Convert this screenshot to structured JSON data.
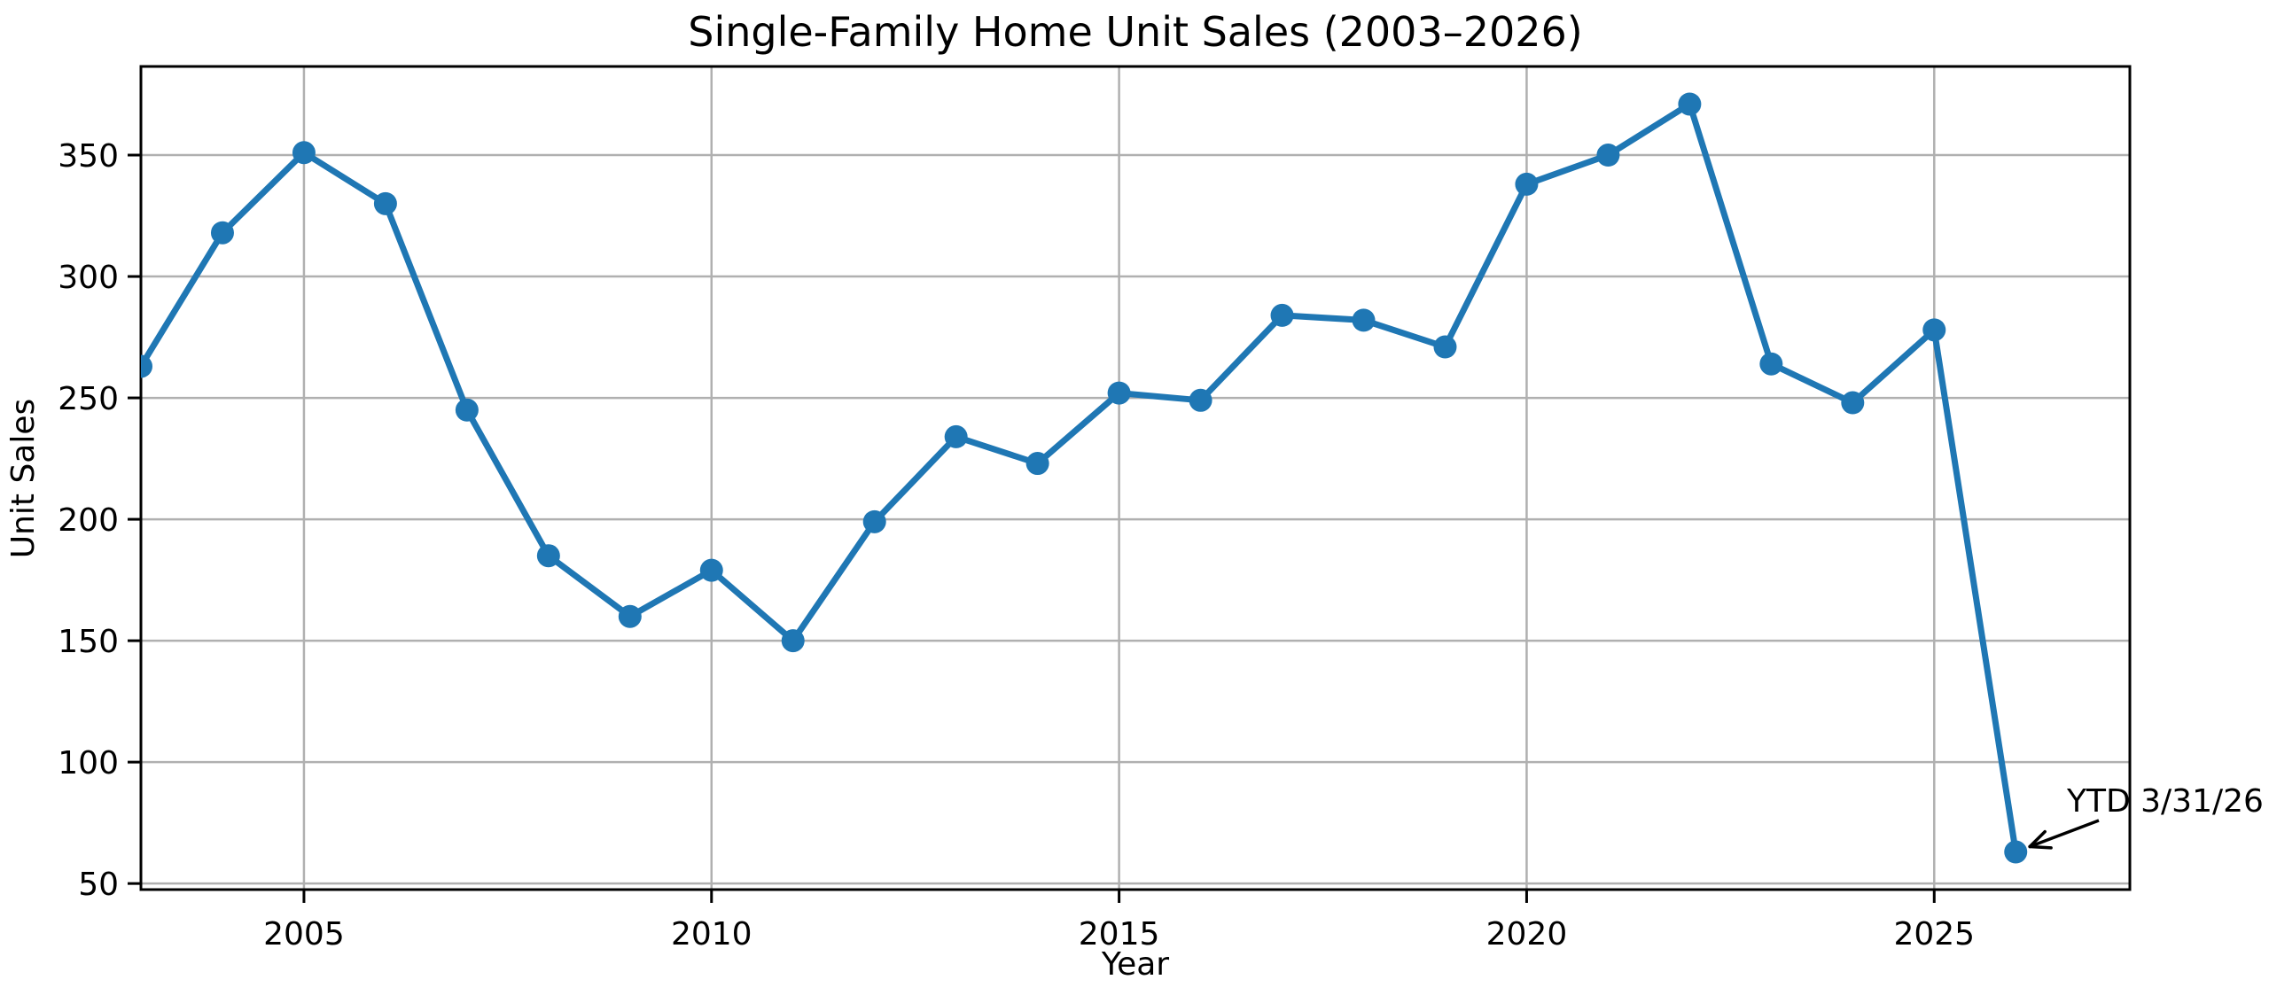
{
  "chart_data": {
    "type": "line",
    "title": "Single-Family Home Unit Sales (2003–2026)",
    "xlabel": "Year",
    "ylabel": "Unit Sales",
    "x": [
      2003,
      2004,
      2005,
      2006,
      2007,
      2008,
      2009,
      2010,
      2011,
      2012,
      2013,
      2014,
      2015,
      2016,
      2017,
      2018,
      2019,
      2020,
      2021,
      2022,
      2023,
      2024,
      2025,
      2026
    ],
    "values": [
      263,
      318,
      351,
      330,
      245,
      185,
      160,
      179,
      150,
      199,
      234,
      223,
      252,
      249,
      284,
      282,
      271,
      338,
      350,
      371,
      264,
      248,
      278,
      63
    ],
    "series_name": "Unit Sales",
    "xticks": [
      2005,
      2010,
      2015,
      2020,
      2025
    ],
    "yticks": [
      50,
      100,
      150,
      200,
      250,
      300,
      350
    ],
    "xlim": [
      2003,
      2027.4
    ],
    "ylim": [
      47.5,
      386.5
    ],
    "grid": true,
    "legend": "none",
    "annotation": {
      "text": "YTD 3/31/26",
      "target_x": 2026,
      "target_y": 63
    },
    "colors": {
      "line": "#1f77b4",
      "marker": "#1f77b4",
      "grid": "#b0b0b0",
      "spine": "#000000",
      "text": "#000000",
      "background": "#ffffff"
    }
  }
}
